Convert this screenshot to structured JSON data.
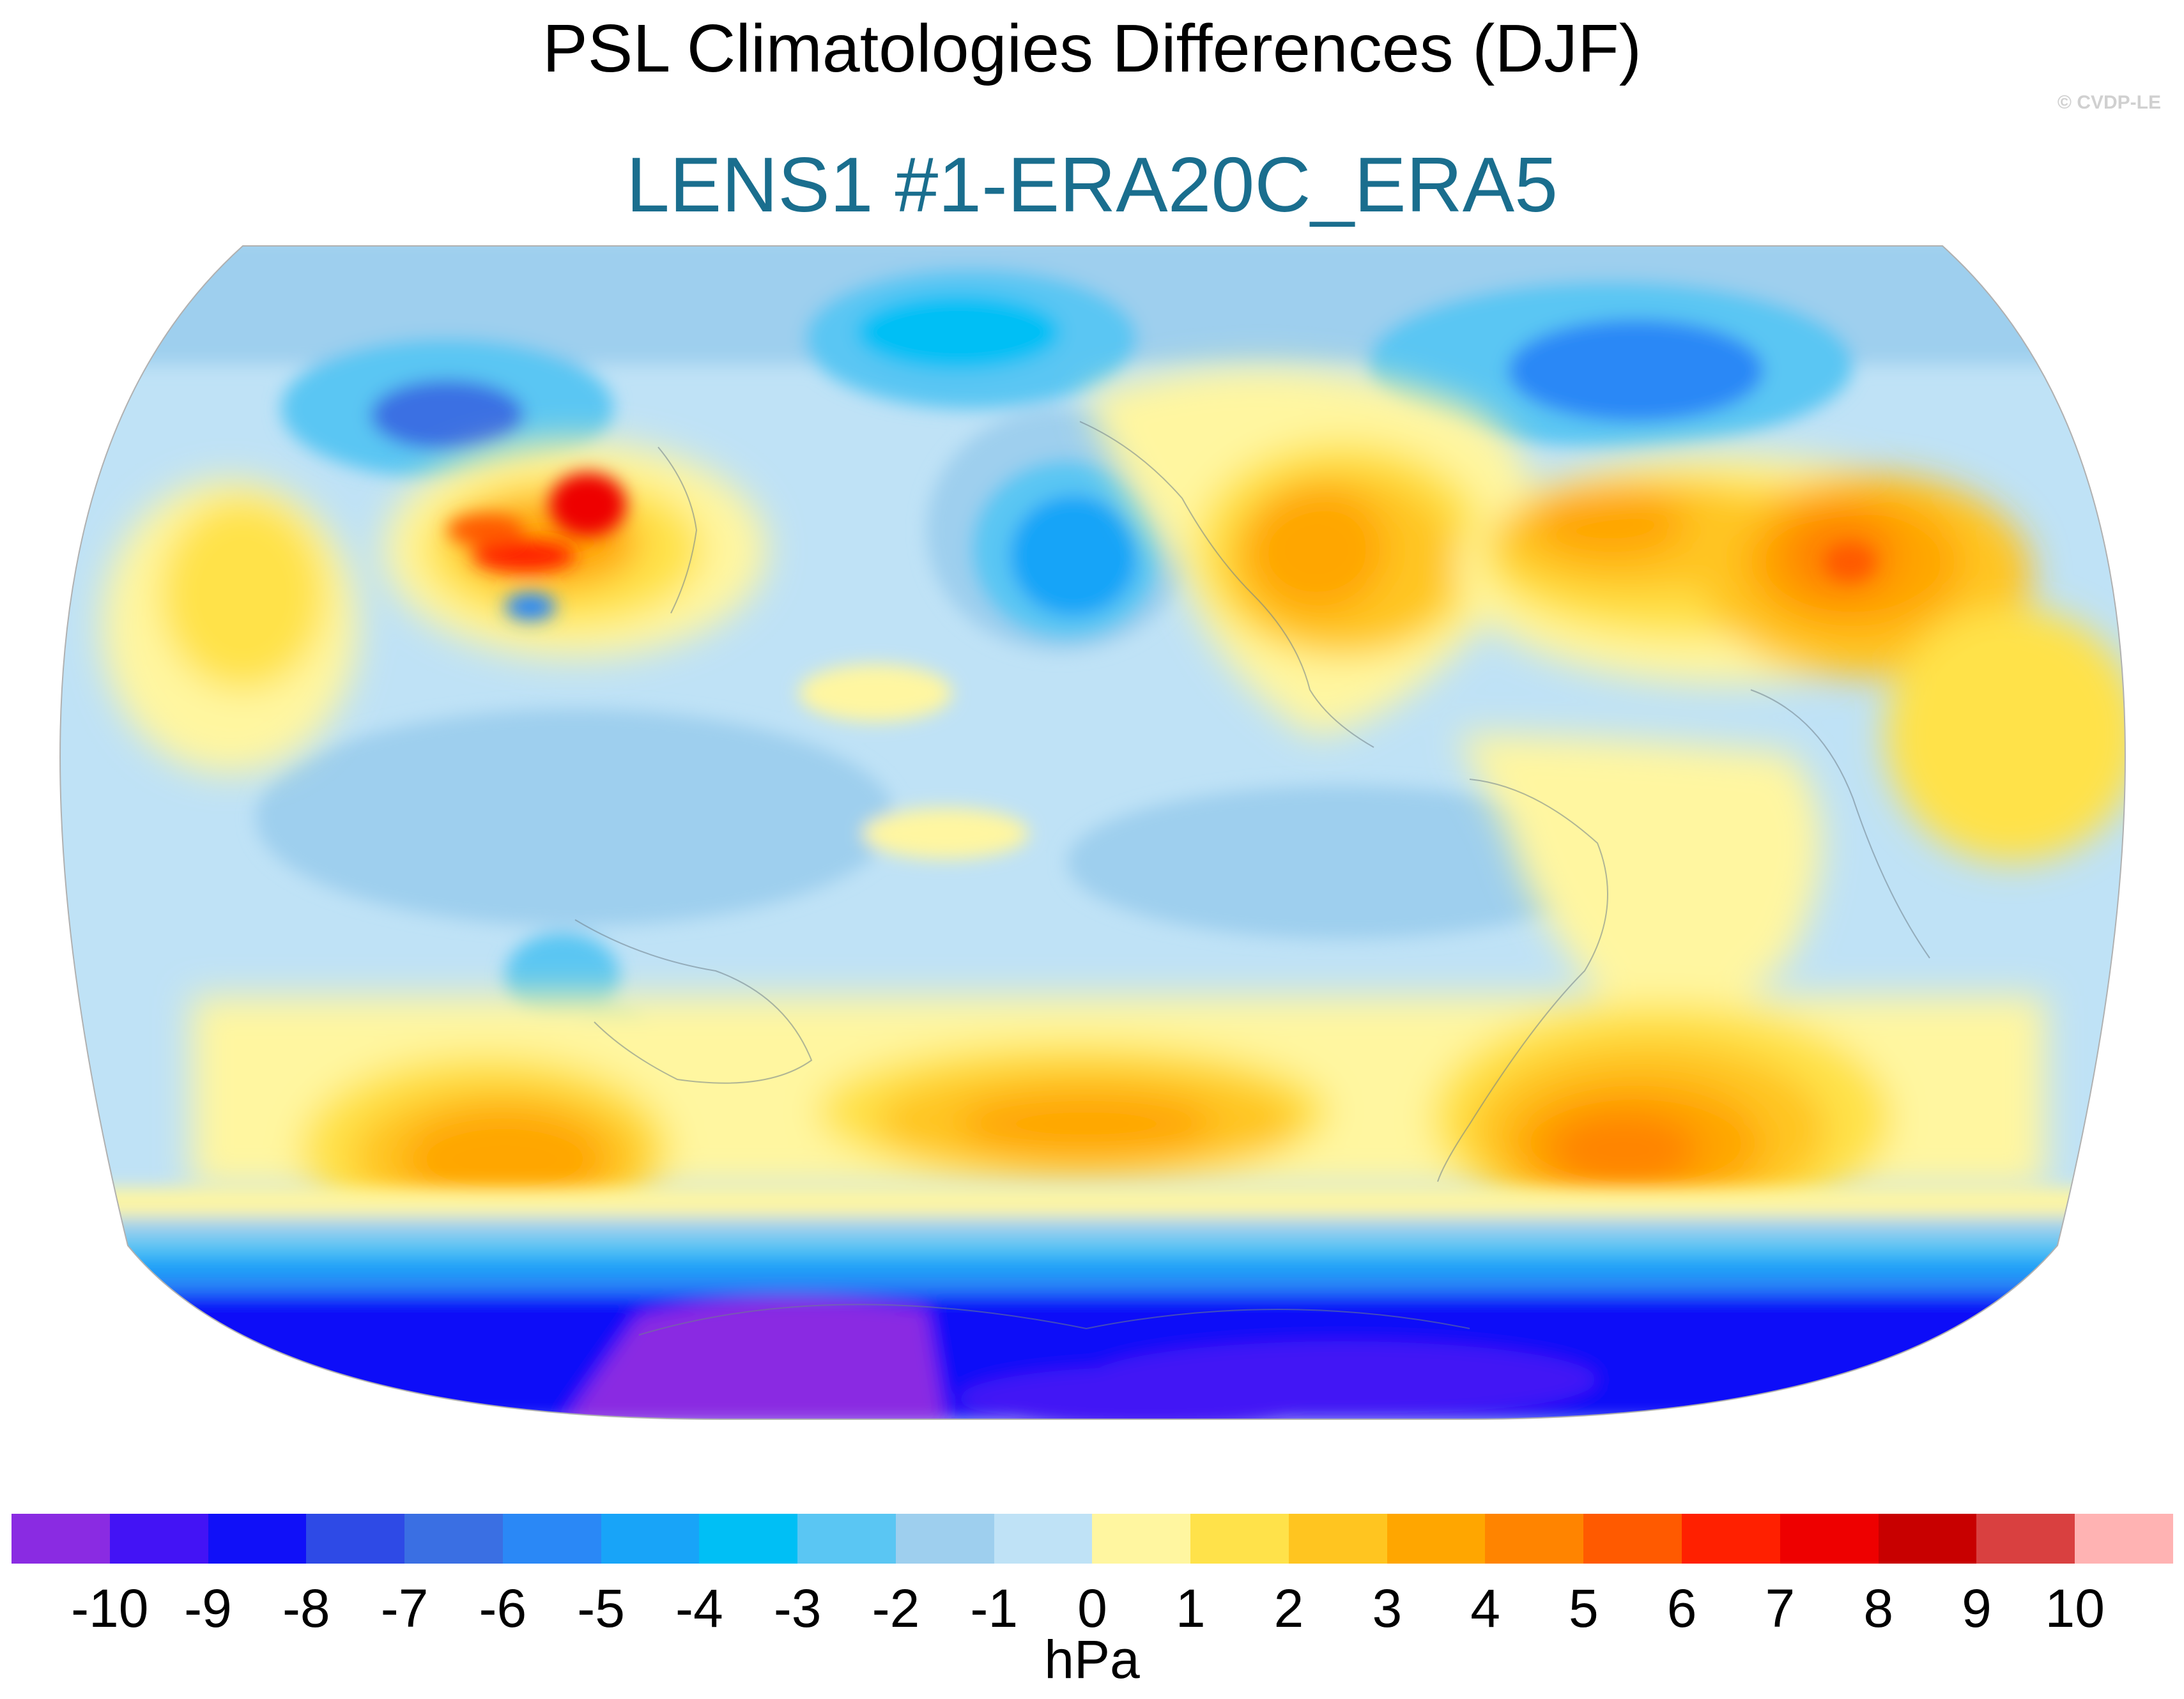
{
  "title": "PSL Climatologies Differences (DJF)",
  "subtitle": "LENS1 #1-ERA20C_ERA5",
  "credit": "© CVDP-LE",
  "colorbar": {
    "unit": "hPa",
    "tick_labels": [
      "-10",
      "-9",
      "-8",
      "-7",
      "-6",
      "-5",
      "-4",
      "-3",
      "-2",
      "-1",
      "0",
      "1",
      "2",
      "3",
      "4",
      "5",
      "6",
      "7",
      "8",
      "9",
      "10"
    ],
    "colors": [
      "#8a2be2",
      "#4313f5",
      "#1010f8",
      "#2e4ae6",
      "#3a6fe3",
      "#2a88f6",
      "#18a4f8",
      "#00bff5",
      "#5ac6f3",
      "#9ecfee",
      "#bfe2f6",
      "#fff6a0",
      "#ffe24a",
      "#ffc520",
      "#ffa600",
      "#ff8400",
      "#ff5a00",
      "#ff2000",
      "#ee0000",
      "#c80000",
      "#d94040",
      "#ffb3b3"
    ]
  },
  "map": {
    "projection": "Robinson",
    "central_longitude": 180,
    "variable": "PSL",
    "season": "DJF",
    "ocean_base_color": "#bfe2f6"
  }
}
